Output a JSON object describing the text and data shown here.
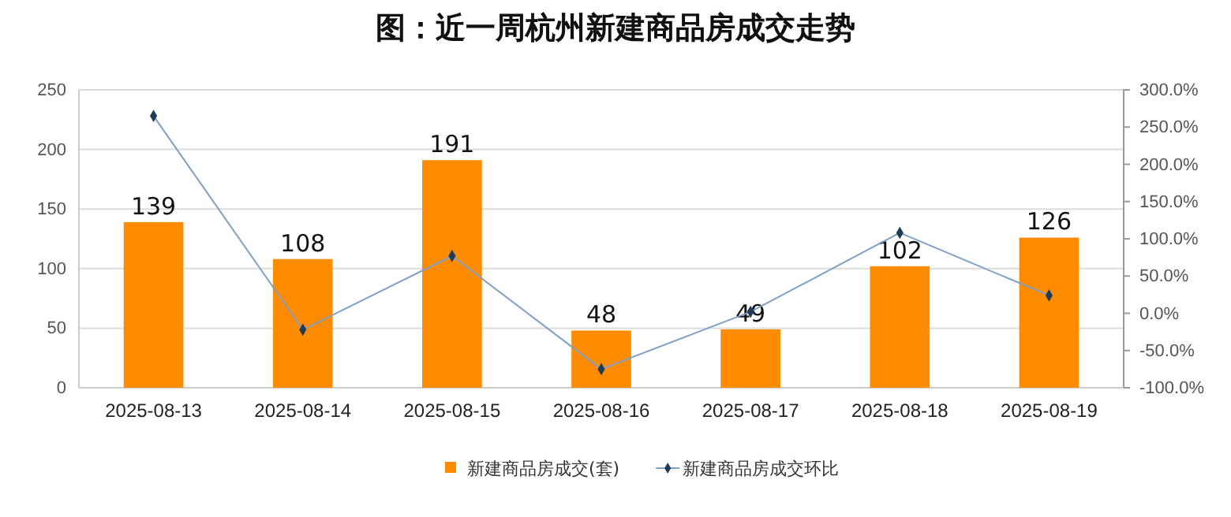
{
  "chart_data": {
    "type": "bar",
    "title": "图：近一周杭州新建商品房成交走势",
    "categories": [
      "2025-08-13",
      "2025-08-14",
      "2025-08-15",
      "2025-08-16",
      "2025-08-17",
      "2025-08-18",
      "2025-08-19"
    ],
    "series": [
      {
        "name": "新建商品房成交(套)",
        "color": "#ff8c00",
        "values": [
          139,
          108,
          191,
          48,
          49,
          102,
          126
        ],
        "data_labels": true
      },
      {
        "name": "新建商品房成交环比",
        "type": "line",
        "axis": "y2",
        "color": "#7f9fc4",
        "marker": "diamond",
        "values": [
          265,
          -22,
          77,
          -75,
          2,
          108,
          24
        ]
      }
    ],
    "ylim": [
      0,
      250
    ],
    "yticks": [
      0,
      50,
      100,
      150,
      200,
      250
    ],
    "y2lim": [
      -100,
      300
    ],
    "y2ticks": [
      {
        "value": -100,
        "label": "-100.0%"
      },
      {
        "value": -50,
        "label": "-50.0%"
      },
      {
        "value": 0,
        "label": "0.0%"
      },
      {
        "value": 50,
        "label": "50.0%"
      },
      {
        "value": 100,
        "label": "100.0%"
      },
      {
        "value": 150,
        "label": "150.0%"
      },
      {
        "value": 200,
        "label": "200.0%"
      },
      {
        "value": 250,
        "label": "250.0%"
      },
      {
        "value": 300,
        "label": "300.0%"
      }
    ],
    "grid": "y",
    "legend": "bottom"
  }
}
